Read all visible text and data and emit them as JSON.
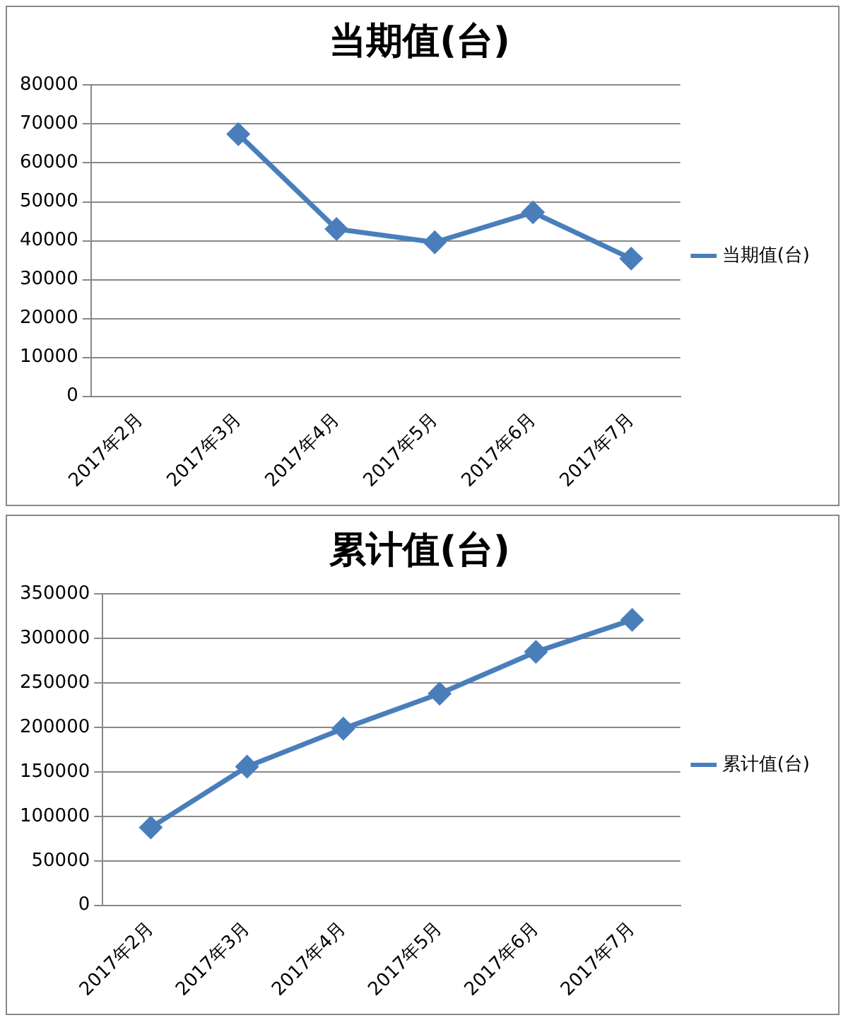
{
  "chart_data": [
    {
      "type": "line",
      "title": "当期值(台)",
      "categories": [
        "2017年2月",
        "2017年3月",
        "2017年4月",
        "2017年5月",
        "2017年6月",
        "2017年7月"
      ],
      "series": [
        {
          "name": "当期值(台)",
          "color": "#4a7ebb",
          "values": [
            null,
            67400,
            43000,
            39600,
            47300,
            35400
          ]
        }
      ],
      "ylim": [
        0,
        80000
      ],
      "yticks": [
        0,
        10000,
        20000,
        30000,
        40000,
        50000,
        60000,
        70000,
        80000
      ],
      "grid": "y",
      "legend": "right",
      "marker": "diamond"
    },
    {
      "type": "line",
      "title": "累计值(台)",
      "categories": [
        "2017年2月",
        "2017年3月",
        "2017年4月",
        "2017年5月",
        "2017年6月",
        "2017年7月"
      ],
      "series": [
        {
          "name": "累计值(台)",
          "color": "#4a7ebb",
          "values": [
            87500,
            156000,
            198700,
            238000,
            285000,
            321000
          ]
        }
      ],
      "ylim": [
        0,
        350000
      ],
      "yticks": [
        0,
        50000,
        100000,
        150000,
        200000,
        250000,
        300000,
        350000
      ],
      "grid": "y",
      "legend": "right",
      "marker": "diamond"
    }
  ]
}
